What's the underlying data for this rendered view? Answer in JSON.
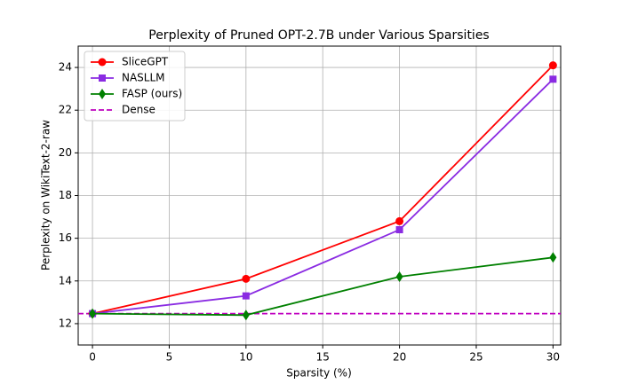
{
  "chart_data": {
    "type": "line",
    "title": "Perplexity of Pruned OPT-2.7B under Various Sparsities",
    "x_label": "Sparsity (%)",
    "y_label": "Perplexity on WikiText-2-raw",
    "x": [
      0,
      10,
      20,
      30
    ],
    "series": [
      {
        "name": "SliceGPT",
        "color": "#ff0000",
        "marker": "circle",
        "values": [
          12.47,
          14.1,
          16.8,
          24.1
        ]
      },
      {
        "name": "NASLLM",
        "color": "#8a2be2",
        "marker": "square",
        "values": [
          12.47,
          13.3,
          16.4,
          23.45
        ]
      },
      {
        "name": "FASP (ours)",
        "color": "#008000",
        "marker": "diamond",
        "values": [
          12.47,
          12.4,
          14.2,
          15.1
        ]
      }
    ],
    "hlines": [
      {
        "name": "Dense",
        "color": "#bf00bf",
        "value": 12.47,
        "dash": true
      }
    ],
    "xlim": [
      -0.93,
      30.5
    ],
    "ylim": [
      11,
      25
    ],
    "xticks": [
      0,
      5,
      10,
      15,
      20,
      25,
      30
    ],
    "yticks": [
      12,
      14,
      16,
      18,
      20,
      22,
      24
    ],
    "grid": true,
    "legend": "upper left"
  }
}
